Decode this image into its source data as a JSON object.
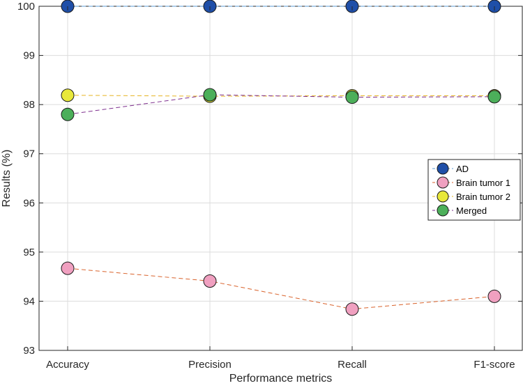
{
  "chart_data": {
    "type": "line",
    "title": "",
    "xlabel": "Performance metrics",
    "ylabel": "Results (%)",
    "categories": [
      "Accuracy",
      "Precision",
      "Recall",
      "F1-score"
    ],
    "ylim": [
      93,
      100
    ],
    "yticks": [
      "93",
      "94",
      "95",
      "96",
      "97",
      "98",
      "99",
      "100"
    ],
    "grid": true,
    "legend_position": "right",
    "series": [
      {
        "name": "AD",
        "values": [
          100,
          100,
          100,
          100
        ],
        "line_color": "#5b9bd5",
        "marker_color": "#1f4fa8"
      },
      {
        "name": "Brain tumor 1",
        "values": [
          94.67,
          94.41,
          93.84,
          94.1
        ],
        "line_color": "#d9622b",
        "marker_color": "#f0a0c0"
      },
      {
        "name": "Brain tumor 2",
        "values": [
          98.19,
          98.17,
          98.18,
          98.18
        ],
        "line_color": "#e6b422",
        "marker_color": "#e8e83a"
      },
      {
        "name": "Merged",
        "values": [
          97.8,
          98.2,
          98.15,
          98.16
        ],
        "line_color": "#7e2f8e",
        "marker_color": "#4caf5a"
      }
    ]
  }
}
